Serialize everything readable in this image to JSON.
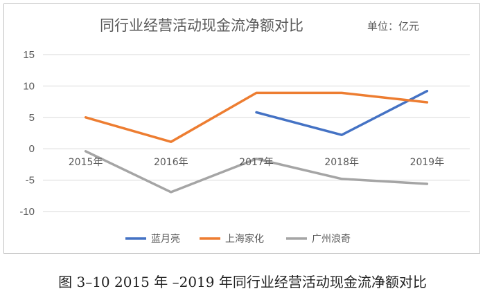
{
  "chart_data": {
    "type": "line",
    "title": "同行业经营活动现金流净额对比",
    "unit": "单位：亿元",
    "categories": [
      "2015年",
      "2016年",
      "2017年",
      "2018年",
      "2019年"
    ],
    "ylim": [
      -10,
      15
    ],
    "yticks": [
      15,
      10,
      5,
      0,
      -5,
      -10
    ],
    "grid": true,
    "legend": "bottom",
    "series": [
      {
        "name": "蓝月亮",
        "color": "#4472c4",
        "values": [
          null,
          null,
          5.8,
          2.2,
          9.2
        ]
      },
      {
        "name": "上海家化",
        "color": "#ed7d31",
        "values": [
          5.0,
          1.1,
          8.9,
          8.9,
          7.4
        ]
      },
      {
        "name": "广州浪奇",
        "color": "#a5a5a5",
        "values": [
          -0.4,
          -6.9,
          -1.6,
          -4.8,
          -5.6
        ]
      }
    ]
  },
  "caption": "图 3–10 2015 年 –2019 年同行业经营活动现金流净额对比"
}
